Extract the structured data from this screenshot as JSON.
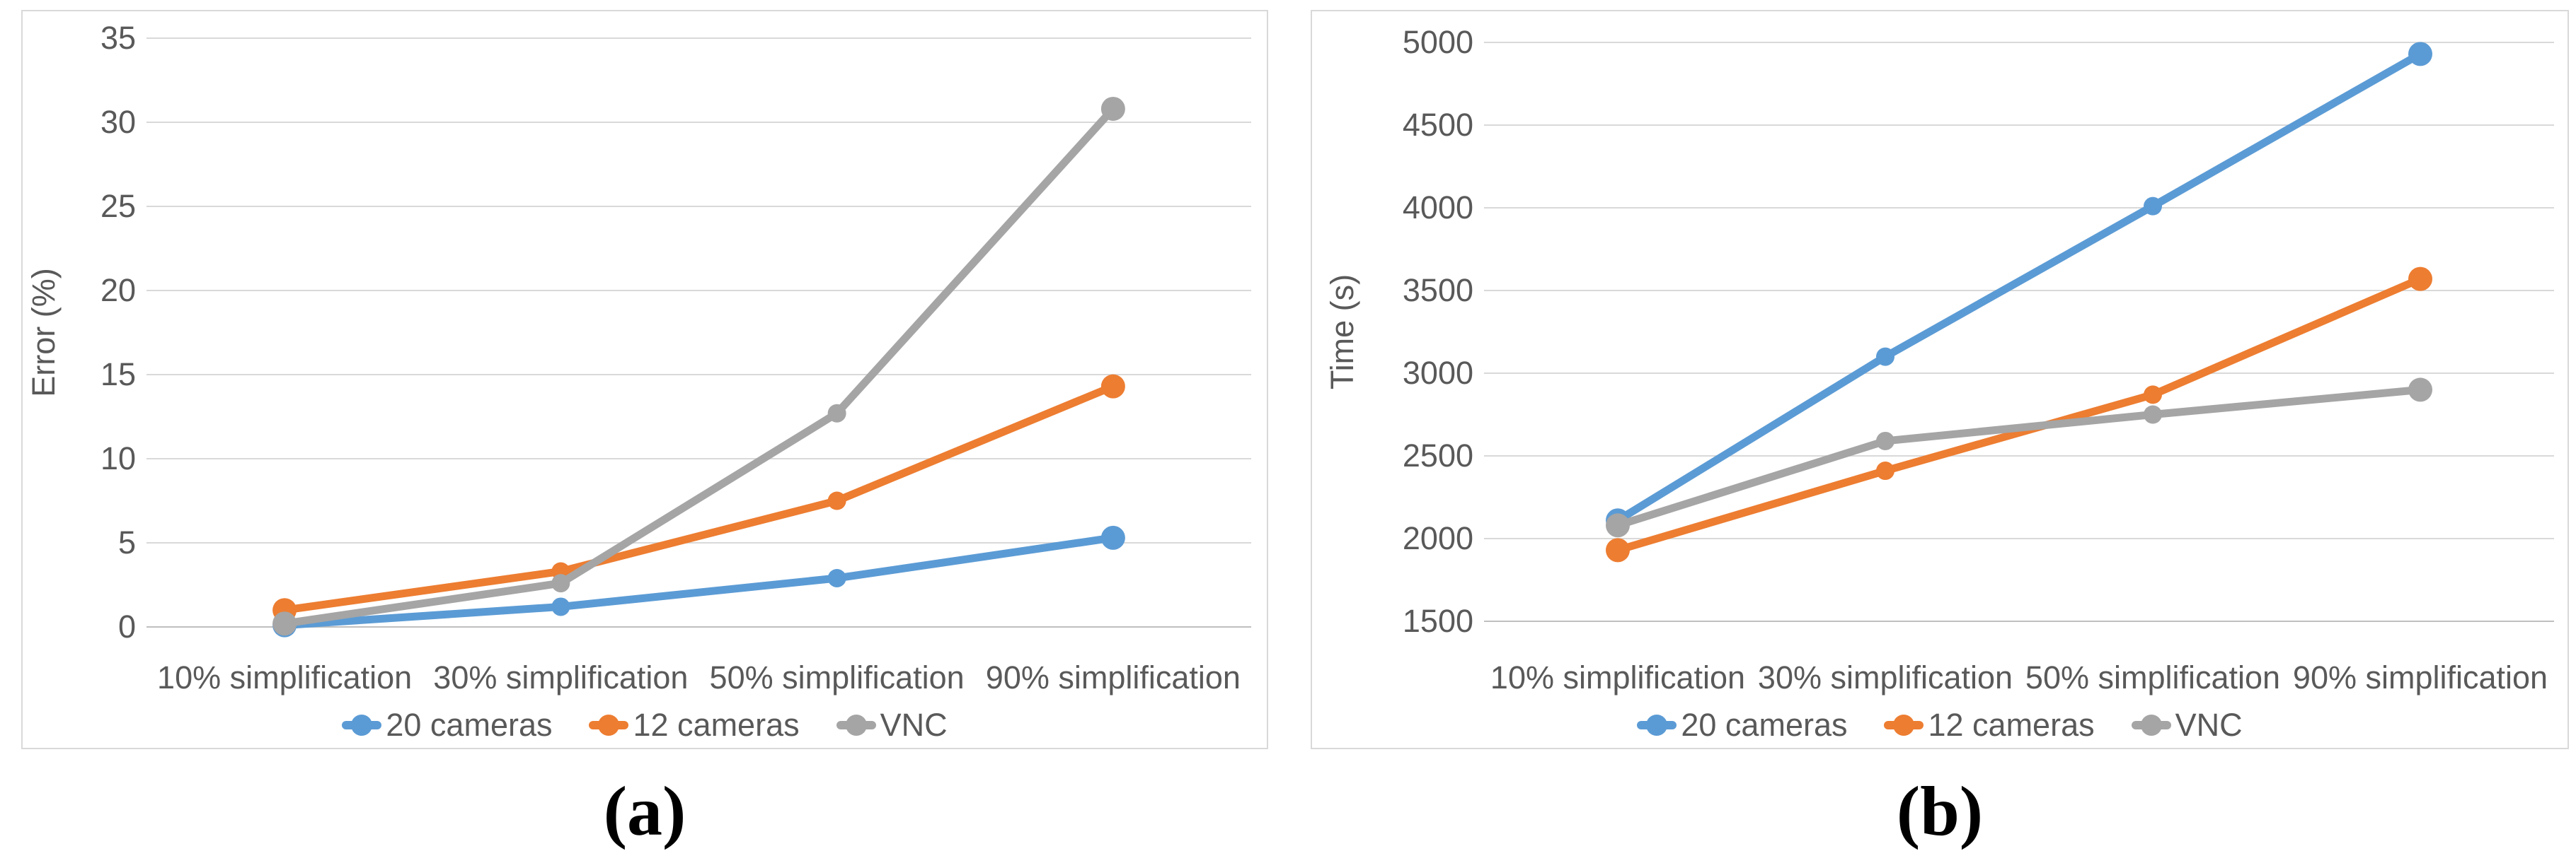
{
  "styles": {
    "grid_color": "#d9d9d9",
    "baseline_color": "#bfbfbf",
    "axis_text_color": "#595959",
    "panel_border_color": "#d9d9d9",
    "series_blue": "#5b9bd5",
    "series_orange": "#ed7d31",
    "series_gray": "#a5a5a5"
  },
  "panels": [
    {
      "caption": "(a)"
    },
    {
      "caption": "(b)"
    }
  ],
  "chart_data": [
    {
      "type": "line",
      "title": "",
      "xlabel": "",
      "ylabel": "Error (%)",
      "ylim": [
        0,
        35
      ],
      "ytick_step": 5,
      "grid": true,
      "legend_position": "bottom",
      "categories": [
        "10% simplification",
        "30% simplification",
        "50% simplification",
        "90% simplification"
      ],
      "series": [
        {
          "name": "20 cameras",
          "color": "#5b9bd5",
          "values": [
            0.1,
            1.2,
            2.9,
            5.3
          ]
        },
        {
          "name": "12 cameras",
          "color": "#ed7d31",
          "values": [
            1.0,
            3.3,
            7.5,
            14.3
          ]
        },
        {
          "name": "VNC",
          "color": "#a5a5a5",
          "values": [
            0.2,
            2.6,
            12.7,
            30.8
          ]
        }
      ]
    },
    {
      "type": "line",
      "title": "",
      "xlabel": "",
      "ylabel": "Time (s)",
      "ylim": [
        1500,
        5000
      ],
      "ytick_step": 500,
      "grid": true,
      "legend_position": "bottom",
      "categories": [
        "10% simplification",
        "30% simplification",
        "50% simplification",
        "90% simplification"
      ],
      "series": [
        {
          "name": "20 cameras",
          "color": "#5b9bd5",
          "values": [
            2110,
            3100,
            4010,
            4930
          ]
        },
        {
          "name": "12 cameras",
          "color": "#ed7d31",
          "values": [
            1930,
            2410,
            2870,
            3570
          ]
        },
        {
          "name": "VNC",
          "color": "#a5a5a5",
          "values": [
            2080,
            2590,
            2750,
            2900
          ]
        }
      ]
    }
  ]
}
